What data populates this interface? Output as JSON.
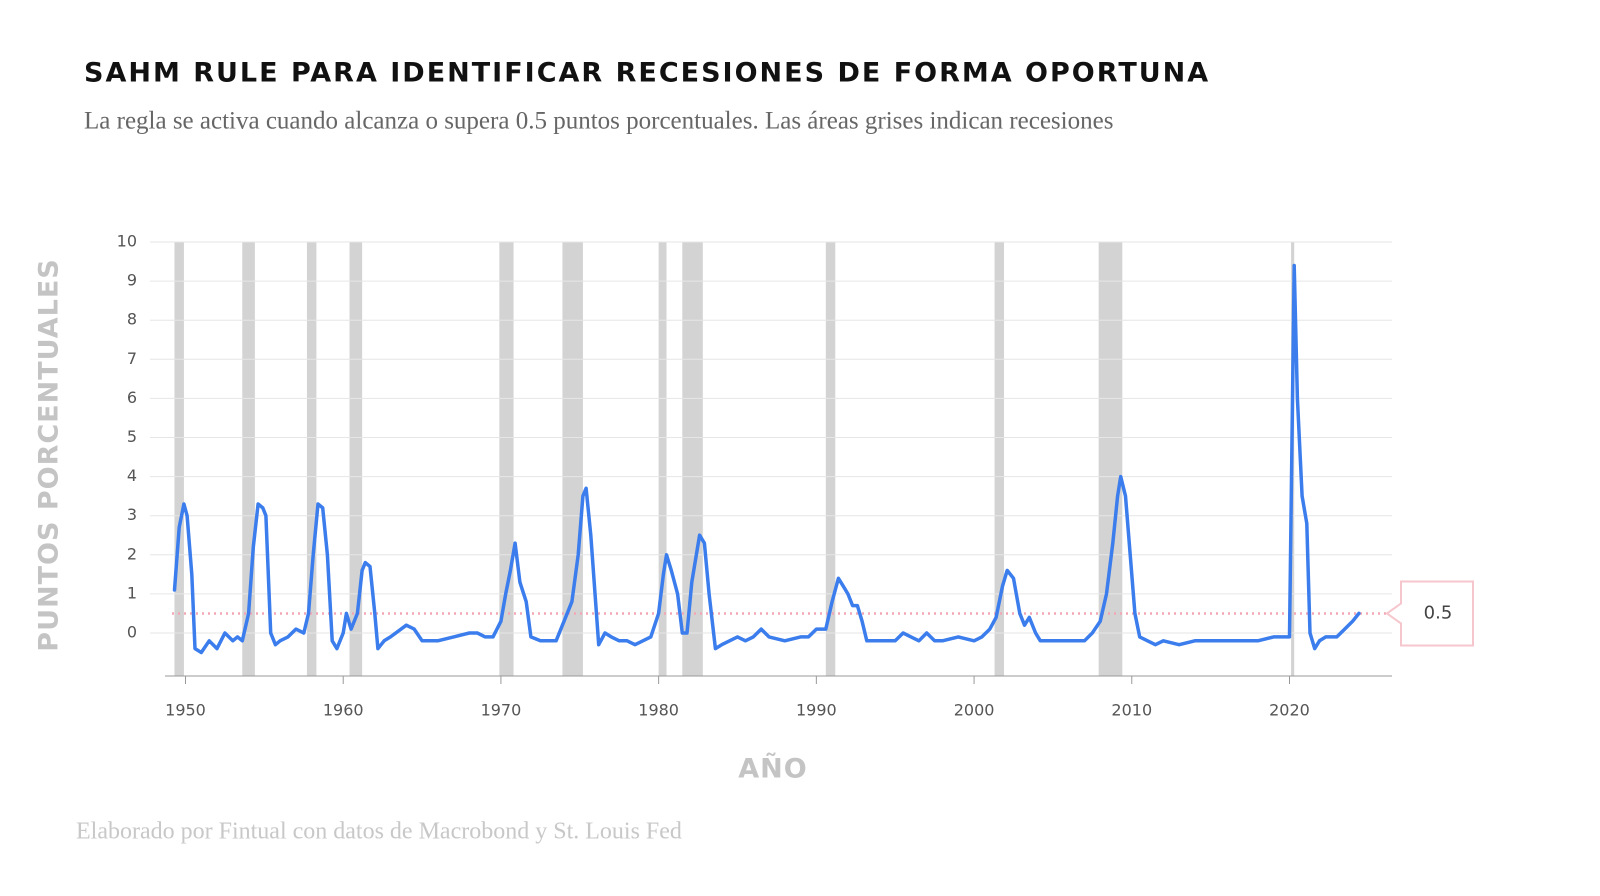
{
  "chart_data": {
    "type": "line",
    "title": "SAHM RULE PARA IDENTIFICAR RECESIONES DE FORMA OPORTUNA",
    "subtitle": "La regla se activa cuando alcanza o supera 0.5 puntos porcentuales. Las áreas grises indican recesiones",
    "y_label": "PUNTOS PORCENTUALES",
    "x_label": "AÑO",
    "source": "Elaborado por Fintual con datos de Macrobond y St. Louis Fed",
    "color": "#3b7ded",
    "grid": true,
    "xlim": [
      1948.7,
      2026.5
    ],
    "ylim": [
      -1.1,
      10
    ],
    "xticks": [
      1950,
      1960,
      1970,
      1980,
      1990,
      2000,
      2010,
      2020
    ],
    "yticks": [
      0,
      1,
      2,
      3,
      4,
      5,
      6,
      7,
      8,
      9,
      10
    ],
    "threshold": 0.5,
    "recessions": [
      [
        1949.3,
        1949.9
      ],
      [
        1953.6,
        1954.4
      ],
      [
        1957.7,
        1958.3
      ],
      [
        1960.4,
        1961.2
      ],
      [
        1969.9,
        1970.8
      ],
      [
        1973.9,
        1975.2
      ],
      [
        1980.0,
        1980.5
      ],
      [
        1981.5,
        1982.8
      ],
      [
        1990.6,
        1991.2
      ],
      [
        2001.3,
        2001.9
      ],
      [
        2007.9,
        2009.4
      ],
      [
        2020.1,
        2020.3
      ]
    ],
    "x": [
      1949.3,
      1949.6,
      1949.9,
      1950.1,
      1950.4,
      1950.6,
      1951,
      1951.5,
      1952,
      1952.5,
      1953,
      1953.3,
      1953.6,
      1954.0,
      1954.3,
      1954.6,
      1954.9,
      1955.1,
      1955.4,
      1955.7,
      1956.0,
      1956.5,
      1957.0,
      1957.5,
      1957.8,
      1958.1,
      1958.4,
      1958.7,
      1959.0,
      1959.3,
      1959.6,
      1960.0,
      1960.2,
      1960.5,
      1960.9,
      1961.2,
      1961.4,
      1961.7,
      1962.0,
      1962.2,
      1962.6,
      1963,
      1964,
      1964.5,
      1965,
      1966,
      1967,
      1968,
      1968.5,
      1969,
      1969.5,
      1970.0,
      1970.3,
      1970.6,
      1970.9,
      1971.2,
      1971.6,
      1971.9,
      1972.5,
      1973,
      1973.5,
      1974.0,
      1974.5,
      1974.9,
      1975.2,
      1975.4,
      1975.7,
      1976.0,
      1976.2,
      1976.6,
      1977,
      1977.5,
      1978,
      1978.5,
      1979,
      1979.5,
      1980.0,
      1980.3,
      1980.5,
      1980.8,
      1981.2,
      1981.5,
      1981.8,
      1982.1,
      1982.6,
      1982.9,
      1983.2,
      1983.6,
      1984,
      1984.5,
      1985,
      1985.5,
      1986,
      1986.5,
      1987,
      1988,
      1989,
      1989.5,
      1990.0,
      1990.6,
      1991.0,
      1991.4,
      1991.7,
      1992.0,
      1992.3,
      1992.6,
      1992.9,
      1993.2,
      1994,
      1995,
      1995.5,
      1996,
      1996.5,
      1997,
      1997.5,
      1998,
      1999,
      2000,
      2000.5,
      2001.0,
      2001.4,
      2001.8,
      2002.1,
      2002.5,
      2002.9,
      2003.2,
      2003.5,
      2003.9,
      2004.2,
      2005,
      2006,
      2007,
      2007.5,
      2008.0,
      2008.4,
      2008.8,
      2009.1,
      2009.3,
      2009.6,
      2009.9,
      2010.2,
      2010.5,
      2011,
      2011.5,
      2012,
      2013,
      2014,
      2015,
      2016,
      2017,
      2018,
      2019,
      2019.5,
      2020.0,
      2020.3,
      2020.5,
      2020.8,
      2021.1,
      2021.3,
      2021.6,
      2021.9,
      2022.3,
      2023,
      2023.5,
      2024.0,
      2024.4
    ],
    "values": [
      1.1,
      2.7,
      3.3,
      3.0,
      1.5,
      -0.4,
      -0.5,
      -0.2,
      -0.4,
      0.0,
      -0.2,
      -0.1,
      -0.2,
      0.5,
      2.2,
      3.3,
      3.2,
      3.0,
      0.0,
      -0.3,
      -0.2,
      -0.1,
      0.1,
      0.0,
      0.5,
      2.0,
      3.3,
      3.2,
      2.0,
      -0.2,
      -0.4,
      0.0,
      0.5,
      0.1,
      0.5,
      1.6,
      1.8,
      1.7,
      0.5,
      -0.4,
      -0.2,
      -0.1,
      0.2,
      0.1,
      -0.2,
      -0.2,
      -0.1,
      0.0,
      0.0,
      -0.1,
      -0.1,
      0.3,
      1.0,
      1.6,
      2.3,
      1.3,
      0.8,
      -0.1,
      -0.2,
      -0.2,
      -0.2,
      0.3,
      0.8,
      2.0,
      3.5,
      3.7,
      2.5,
      0.8,
      -0.3,
      0.0,
      -0.1,
      -0.2,
      -0.2,
      -0.3,
      -0.2,
      -0.1,
      0.5,
      1.5,
      2.0,
      1.6,
      1.0,
      0.0,
      0.0,
      1.3,
      2.5,
      2.3,
      1.0,
      -0.4,
      -0.3,
      -0.2,
      -0.1,
      -0.2,
      -0.1,
      0.1,
      -0.1,
      -0.2,
      -0.1,
      -0.1,
      0.1,
      0.1,
      0.8,
      1.4,
      1.2,
      1.0,
      0.7,
      0.7,
      0.3,
      -0.2,
      -0.2,
      -0.2,
      0.0,
      -0.1,
      -0.2,
      0.0,
      -0.2,
      -0.2,
      -0.1,
      -0.2,
      -0.1,
      0.1,
      0.4,
      1.2,
      1.6,
      1.4,
      0.5,
      0.2,
      0.4,
      0.0,
      -0.2,
      -0.2,
      -0.2,
      -0.2,
      0.0,
      0.3,
      1.0,
      2.3,
      3.5,
      4.0,
      3.5,
      2.0,
      0.5,
      -0.1,
      -0.2,
      -0.3,
      -0.2,
      -0.3,
      -0.2,
      -0.2,
      -0.2,
      -0.2,
      -0.2,
      -0.1,
      -0.1,
      -0.1,
      9.4,
      6.0,
      3.5,
      2.8,
      0.0,
      -0.4,
      -0.2,
      -0.1,
      -0.1,
      0.1,
      0.3,
      0.5
    ]
  }
}
